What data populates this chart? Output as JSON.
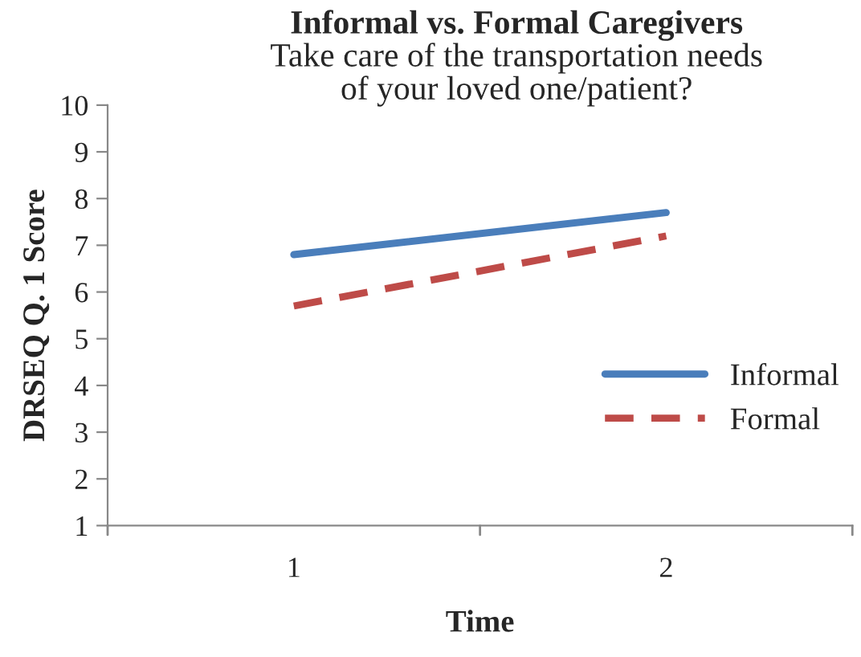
{
  "chart_data": {
    "type": "line",
    "title": "Informal vs. Formal Caregivers",
    "subtitle": "Take care of the transportation needs\nof your loved one/patient?",
    "xlabel": "Time",
    "ylabel": "DRSEQ Q. 1 Score",
    "categories": [
      "1",
      "2"
    ],
    "series": [
      {
        "name": "Informal",
        "color": "#4a7ebb",
        "values": [
          6.8,
          7.7
        ],
        "line_style": "solid"
      },
      {
        "name": "Formal",
        "color": "#be4b48",
        "values": [
          5.7,
          7.2
        ],
        "line_style": "dashed"
      }
    ],
    "ylim": [
      1,
      10
    ],
    "yticks": [
      1,
      2,
      3,
      4,
      5,
      6,
      7,
      8,
      9,
      10
    ],
    "grid": false,
    "legend": "right",
    "marker": "none"
  }
}
